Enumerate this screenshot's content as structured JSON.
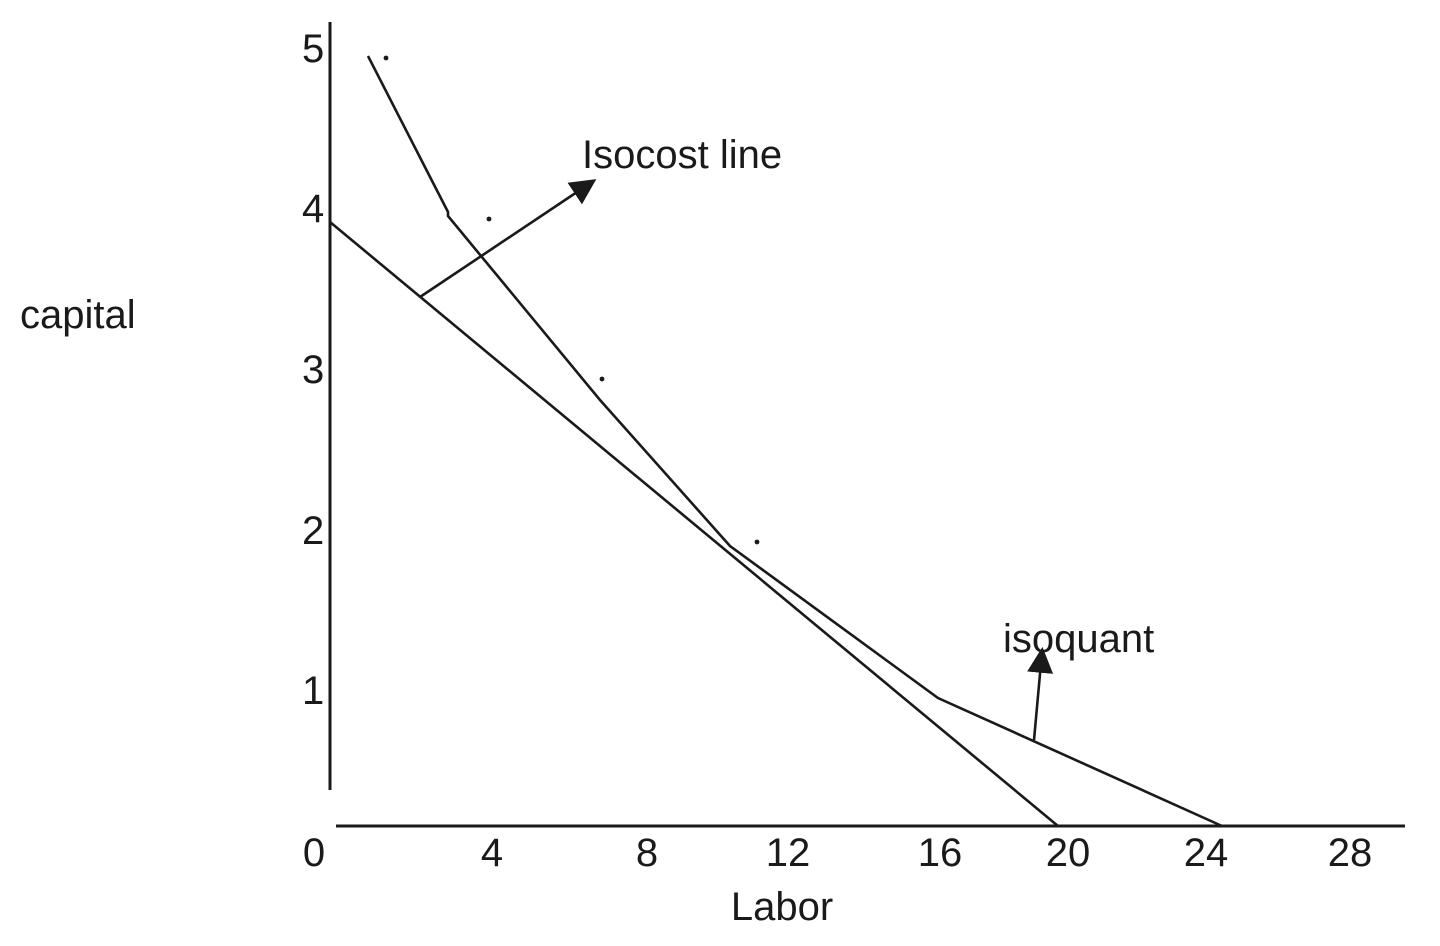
{
  "chart_data": {
    "type": "line",
    "xlabel": "Labor",
    "ylabel": "capital",
    "xlim": [
      0,
      30
    ],
    "ylim": [
      0,
      5
    ],
    "x_ticks": [
      "0",
      "4",
      "8",
      "12",
      "16",
      "20",
      "24",
      "28"
    ],
    "y_ticks": [
      "1",
      "2",
      "3",
      "4",
      "5"
    ],
    "series": [
      {
        "name": "Isocost line",
        "points": [
          [
            0,
            4
          ],
          [
            20,
            0
          ]
        ]
      },
      {
        "name": "isoquant",
        "points": [
          [
            1,
            5
          ],
          [
            3,
            3.8
          ],
          [
            7,
            2.9
          ],
          [
            11,
            1.8
          ],
          [
            16,
            0.8
          ],
          [
            24,
            0
          ]
        ]
      }
    ],
    "dots": [
      [
        1.5,
        5
      ],
      [
        4,
        4
      ],
      [
        7,
        3
      ],
      [
        11,
        2
      ]
    ],
    "annotations": [
      {
        "text": "Isocost line",
        "arrow_from": [
          2.5,
          3.4
        ],
        "arrow_to": [
          7,
          4.2
        ]
      },
      {
        "text": "isoquant",
        "arrow_from": [
          19,
          0.55
        ],
        "arrow_to": [
          19.5,
          1.15
        ]
      }
    ]
  }
}
